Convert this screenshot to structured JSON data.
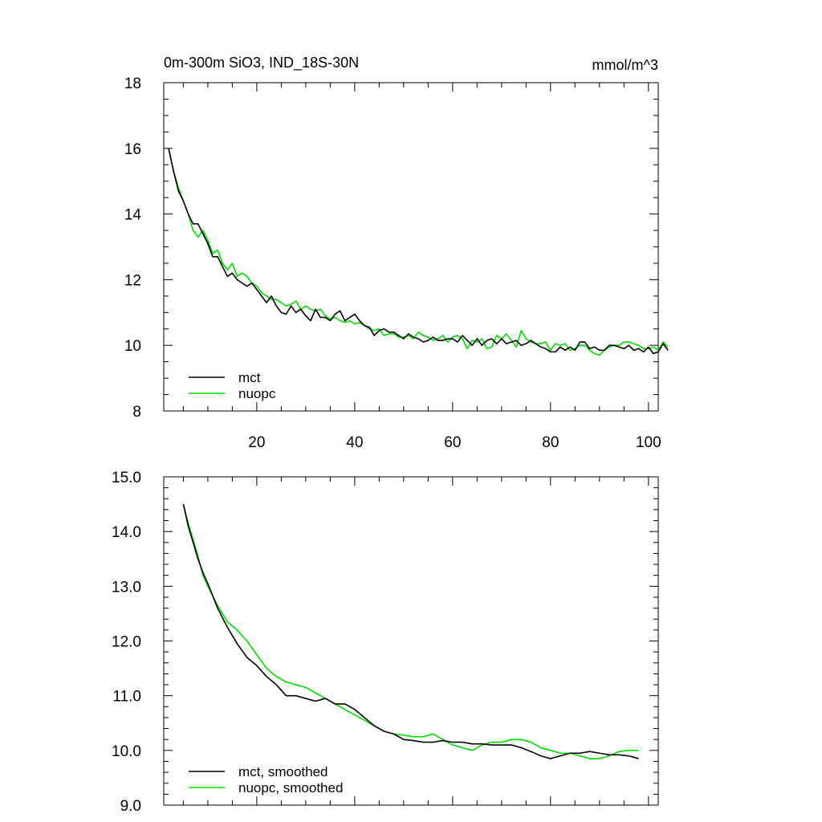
{
  "chart_data": [
    {
      "type": "line",
      "title": "0m-300m SiO3, IND_18S-30N",
      "units": "mmol/m^3",
      "xlabel": "",
      "ylabel": "",
      "xlim": [
        1,
        102
      ],
      "ylim": [
        8,
        18
      ],
      "xticks": [
        20,
        40,
        60,
        80,
        100
      ],
      "xtick_labels": [
        "20",
        "40",
        "60",
        "80",
        "100"
      ],
      "yticks": [
        8,
        10,
        12,
        14,
        16,
        18
      ],
      "ytick_labels": [
        "8",
        "10",
        "12",
        "14",
        "16",
        "18"
      ],
      "legend_position": "bottom-left",
      "colors": {
        "mct": "#000000",
        "nuopc": "#00dd00"
      },
      "x_start": 2,
      "series": [
        {
          "name": "mct",
          "color": "#000000",
          "values": [
            16.0,
            15.3,
            14.7,
            14.4,
            14.0,
            13.7,
            13.7,
            13.4,
            13.1,
            12.7,
            12.7,
            12.4,
            12.1,
            12.2,
            12.0,
            11.9,
            11.8,
            11.9,
            11.7,
            11.5,
            11.3,
            11.5,
            11.2,
            11.0,
            10.95,
            11.2,
            11.0,
            11.1,
            10.9,
            10.75,
            11.1,
            10.85,
            10.85,
            10.75,
            10.95,
            11.05,
            10.75,
            10.85,
            10.95,
            10.75,
            10.6,
            10.55,
            10.3,
            10.45,
            10.5,
            10.4,
            10.4,
            10.3,
            10.2,
            10.35,
            10.25,
            10.2,
            10.1,
            10.15,
            10.25,
            10.15,
            10.15,
            10.2,
            10.2,
            10.1,
            10.3,
            10.15,
            10.0,
            10.2,
            10.0,
            10.15,
            10.2,
            10.05,
            10.2,
            10.05,
            10.1,
            10.15,
            10.0,
            10.05,
            10.15,
            10.05,
            9.95,
            9.9,
            9.8,
            9.8,
            9.95,
            9.85,
            9.95,
            9.85,
            10.1,
            10.1,
            9.9,
            9.95,
            9.85,
            9.85,
            10.0,
            10.0,
            9.95,
            9.9,
            10.0,
            9.85,
            9.9,
            9.8,
            9.95,
            9.75,
            9.8,
            10.05,
            9.85
          ]
        },
        {
          "name": "nuopc",
          "color": "#00dd00",
          "values": [
            16.0,
            15.3,
            14.8,
            14.4,
            14.0,
            13.5,
            13.3,
            13.5,
            13.2,
            12.8,
            12.9,
            12.5,
            12.3,
            12.5,
            12.1,
            12.2,
            12.1,
            11.9,
            11.8,
            11.6,
            11.5,
            11.4,
            11.4,
            11.3,
            11.2,
            11.25,
            11.35,
            11.1,
            11.2,
            11.1,
            11.05,
            11.1,
            10.9,
            10.8,
            10.85,
            10.75,
            10.7,
            10.75,
            10.65,
            10.7,
            10.6,
            10.5,
            10.45,
            10.5,
            10.3,
            10.35,
            10.35,
            10.25,
            10.25,
            10.3,
            10.2,
            10.4,
            10.3,
            10.25,
            10.15,
            10.2,
            10.3,
            10.1,
            10.25,
            10.3,
            10.2,
            9.9,
            10.15,
            10.1,
            10.2,
            9.9,
            9.95,
            10.3,
            10.2,
            10.35,
            10.15,
            9.95,
            10.45,
            10.2,
            10.1,
            10.05,
            10.05,
            10.1,
            9.85,
            10.05,
            10.0,
            10.05,
            9.85,
            9.9,
            10.0,
            10.0,
            9.85,
            9.75,
            9.7,
            9.85,
            9.95,
            10.0,
            10.0,
            10.1,
            10.1,
            10.05,
            10.0,
            9.9,
            9.9,
            9.95,
            9.85,
            10.1,
            9.95
          ]
        }
      ],
      "legend": [
        "mct",
        "nuopc"
      ]
    },
    {
      "type": "line",
      "title": "",
      "xlabel": "",
      "ylabel": "",
      "xlim": [
        1,
        102
      ],
      "ylim": [
        9,
        15
      ],
      "xticks": [
        20,
        40,
        60,
        80,
        100
      ],
      "xtick_labels": [],
      "yticks": [
        9,
        10,
        11,
        12,
        13,
        14,
        15
      ],
      "ytick_labels": [
        "9.0",
        "10.0",
        "11.0",
        "12.0",
        "13.0",
        "14.0",
        "15.0"
      ],
      "legend_position": "bottom-left",
      "colors": {
        "mct": "#000000",
        "nuopc": "#00dd00"
      },
      "x": [
        5,
        6,
        7,
        8,
        9,
        10,
        12,
        14,
        16,
        18,
        20,
        22,
        24,
        26,
        28,
        30,
        32,
        34,
        36,
        38,
        40,
        42,
        44,
        46,
        48,
        50,
        52,
        54,
        56,
        58,
        60,
        62,
        64,
        66,
        68,
        70,
        72,
        74,
        76,
        78,
        80,
        82,
        84,
        86,
        88,
        90,
        92,
        94,
        96,
        98
      ],
      "series": [
        {
          "name": "mct, smoothed",
          "color": "#000000",
          "values": [
            14.5,
            14.1,
            13.8,
            13.5,
            13.25,
            13.05,
            12.6,
            12.25,
            11.95,
            11.7,
            11.55,
            11.35,
            11.2,
            11.0,
            11.0,
            10.95,
            10.9,
            10.95,
            10.85,
            10.85,
            10.75,
            10.6,
            10.45,
            10.35,
            10.3,
            10.2,
            10.18,
            10.15,
            10.15,
            10.18,
            10.15,
            10.15,
            10.12,
            10.12,
            10.1,
            10.1,
            10.1,
            10.05,
            9.98,
            9.9,
            9.85,
            9.9,
            9.95,
            9.95,
            9.98,
            9.95,
            9.92,
            9.92,
            9.9,
            9.85
          ]
        },
        {
          "name": "nuopc, smoothed",
          "color": "#00dd00",
          "values": [
            14.5,
            14.15,
            13.85,
            13.55,
            13.2,
            13.0,
            12.65,
            12.35,
            12.2,
            12.0,
            11.75,
            11.5,
            11.35,
            11.25,
            11.2,
            11.15,
            11.05,
            10.95,
            10.85,
            10.75,
            10.65,
            10.55,
            10.45,
            10.35,
            10.3,
            10.28,
            10.25,
            10.25,
            10.3,
            10.2,
            10.1,
            10.05,
            10.0,
            10.1,
            10.15,
            10.15,
            10.2,
            10.2,
            10.15,
            10.05,
            10.0,
            9.95,
            9.95,
            9.9,
            9.85,
            9.85,
            9.9,
            9.98,
            10.0,
            10.0
          ]
        }
      ],
      "legend": [
        "mct, smoothed",
        "nuopc, smoothed"
      ]
    }
  ]
}
